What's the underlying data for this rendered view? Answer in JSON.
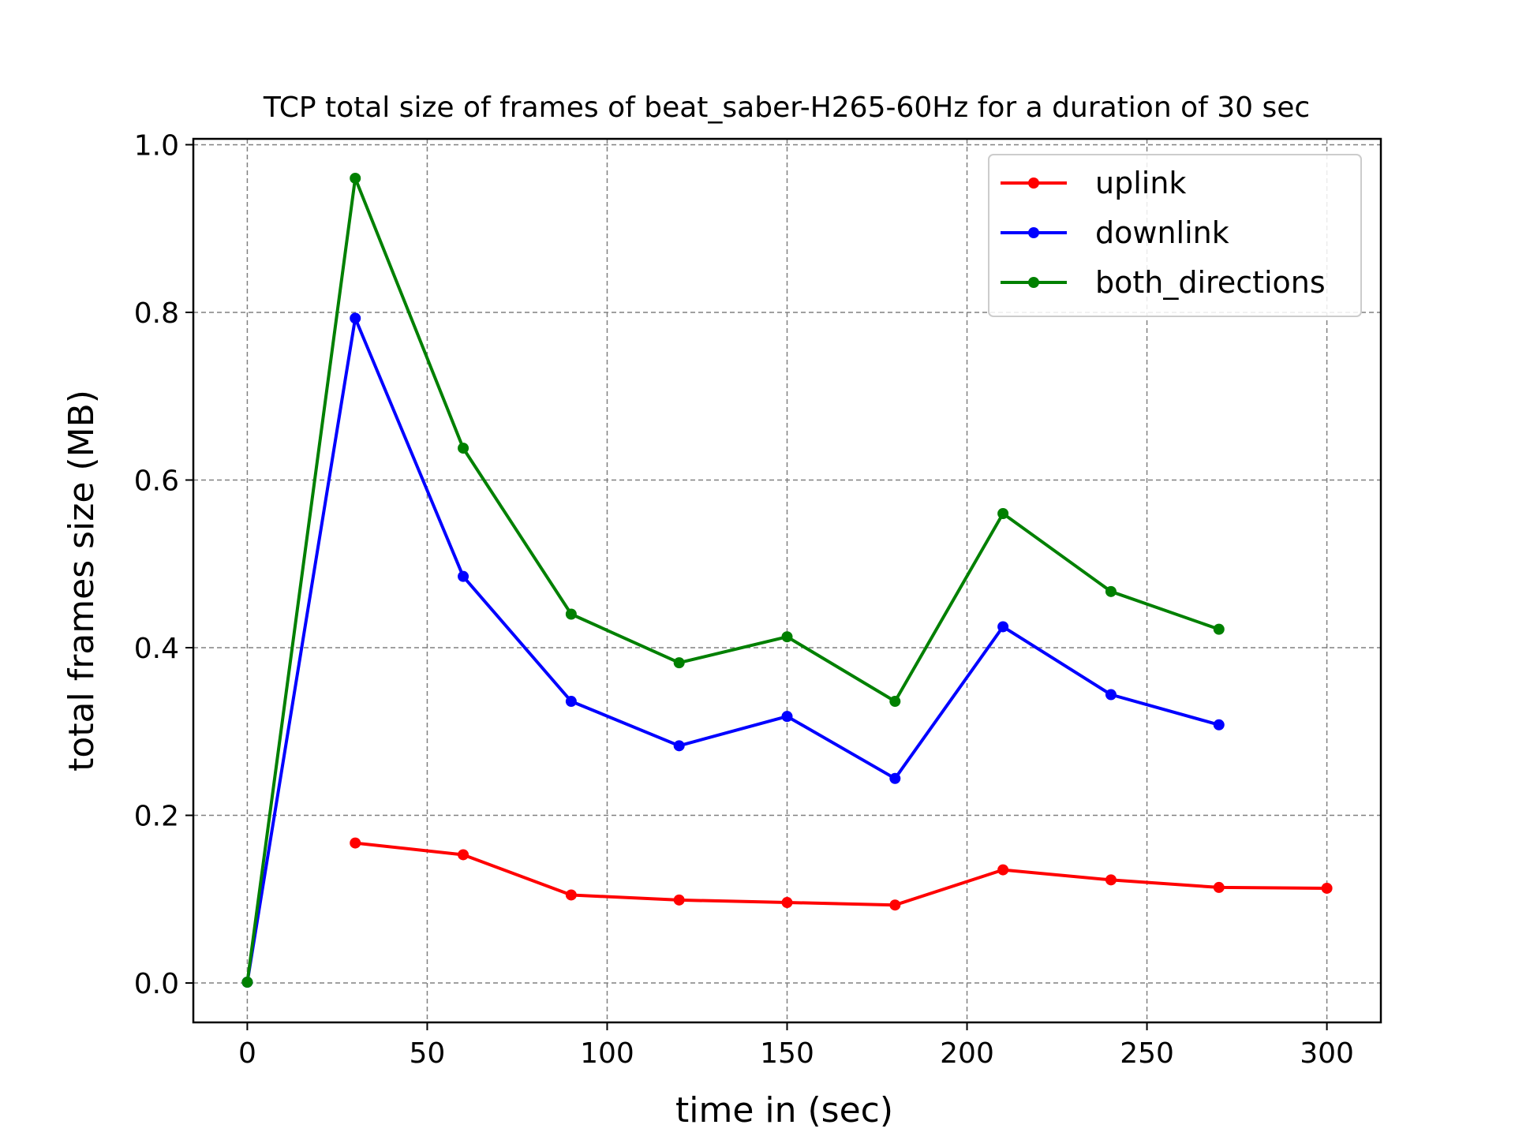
{
  "chart_data": {
    "type": "line",
    "title": "TCP total size of frames of beat_saber-H265-60Hz for a duration of 30 sec",
    "xlabel": "time in (sec)",
    "ylabel": "total frames size (MB)",
    "xlim": [
      -15,
      315
    ],
    "ylim": [
      -0.047,
      1.007
    ],
    "xticks": [
      0,
      50,
      100,
      150,
      200,
      250,
      300
    ],
    "xtick_labels": [
      "0",
      "50",
      "100",
      "150",
      "200",
      "250",
      "300"
    ],
    "yticks": [
      0.0,
      0.2,
      0.4,
      0.6,
      0.8,
      1.0
    ],
    "ytick_labels": [
      "0.0",
      "0.2",
      "0.4",
      "0.6",
      "0.8",
      "1.0"
    ],
    "grid": true,
    "legend_position": "top-right",
    "series": [
      {
        "name": "uplink",
        "color": "#ff0000",
        "x": [
          30,
          60,
          90,
          120,
          150,
          180,
          210,
          240,
          270,
          300
        ],
        "y": [
          0.167,
          0.153,
          0.105,
          0.099,
          0.096,
          0.093,
          0.135,
          0.123,
          0.114,
          0.113
        ]
      },
      {
        "name": "downlink",
        "color": "#0000ff",
        "x": [
          0,
          30,
          60,
          90,
          120,
          150,
          180,
          210,
          240,
          270
        ],
        "y": [
          0.001,
          0.793,
          0.485,
          0.336,
          0.283,
          0.318,
          0.244,
          0.425,
          0.344,
          0.308
        ]
      },
      {
        "name": "both_directions",
        "color": "#008000",
        "x": [
          0,
          30,
          60,
          90,
          120,
          150,
          180,
          210,
          240,
          270
        ],
        "y": [
          0.001,
          0.96,
          0.638,
          0.44,
          0.382,
          0.413,
          0.336,
          0.56,
          0.467,
          0.422
        ]
      }
    ]
  }
}
